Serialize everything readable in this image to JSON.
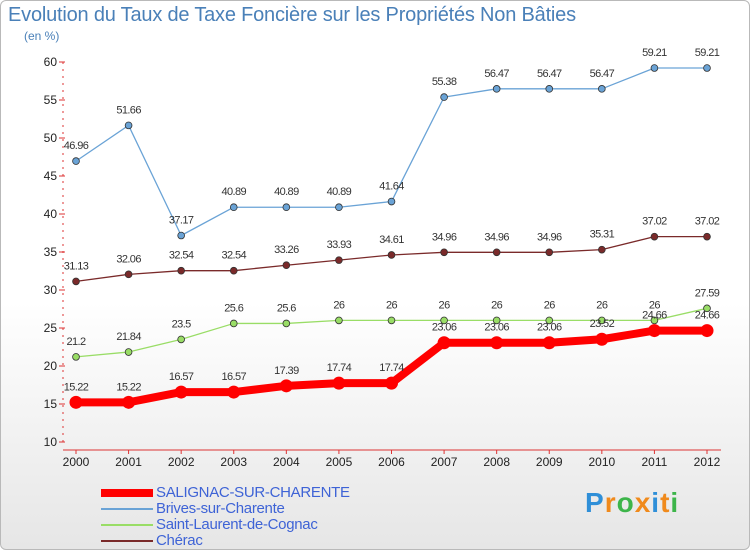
{
  "title": "Evolution du Taux de Taxe Foncière sur les Propriétés Non Bâties",
  "unit_label": "(en %)",
  "logo_text": "Proxiti",
  "colors": {
    "title": "#4a80b8",
    "salignac": "#ff0000",
    "brives": "#6aa3d6",
    "saint_laurent": "#99dd66",
    "cherac": "#7a2a2a",
    "legend_text": "#3e63d6"
  },
  "chart_data": {
    "type": "line",
    "title": "Evolution du Taux de Taxe Foncière sur les Propriétés Non Bâties",
    "ylabel": "(en %)",
    "xlabel": "",
    "x": [
      "2000",
      "2001",
      "2002",
      "2003",
      "2004",
      "2005",
      "2006",
      "2007",
      "2008",
      "2009",
      "2010",
      "2011",
      "2012"
    ],
    "yticks": [
      10,
      15,
      20,
      25,
      30,
      35,
      40,
      45,
      50,
      55,
      60
    ],
    "ylim": [
      10,
      60
    ],
    "grid": false,
    "legend_position": "bottom-left",
    "series": [
      {
        "name": "SALIGNAC-SUR-CHARENTE",
        "color": "#ff0000",
        "values": [
          15.22,
          15.22,
          16.57,
          16.57,
          17.39,
          17.74,
          17.74,
          23.06,
          23.06,
          23.06,
          23.52,
          24.66,
          24.66
        ],
        "labels": [
          "15.22",
          "15.22",
          "16.57",
          "16.57",
          "17.39",
          "17.74",
          "17.74",
          "23.06",
          "23.06",
          "23.06",
          "23.52",
          "24.66",
          "24.66"
        ]
      },
      {
        "name": "Brives-sur-Charente",
        "color": "#6aa3d6",
        "values": [
          46.96,
          51.66,
          37.17,
          40.89,
          40.89,
          40.89,
          41.64,
          55.38,
          56.47,
          56.47,
          56.47,
          59.21,
          59.21
        ],
        "labels": [
          "46.96",
          "51.66",
          "37.17",
          "40.89",
          "40.89",
          "40.89",
          "41.64",
          "55.38",
          "56.47",
          "56.47",
          "56.47",
          "59.21",
          "59.21"
        ]
      },
      {
        "name": "Saint-Laurent-de-Cognac",
        "color": "#99dd66",
        "values": [
          21.2,
          21.84,
          23.5,
          25.6,
          25.6,
          26,
          26,
          26,
          26,
          26,
          26,
          26,
          27.59
        ],
        "labels": [
          "21.2",
          "21.84",
          "23.5",
          "25.6",
          "25.6",
          "26",
          "26",
          "26",
          "26",
          "26",
          "26",
          "26",
          "27.59"
        ]
      },
      {
        "name": "Chérac",
        "color": "#7a2a2a",
        "values": [
          31.13,
          32.06,
          32.54,
          32.54,
          33.26,
          33.93,
          34.61,
          34.96,
          34.96,
          34.96,
          35.31,
          37.02,
          37.02
        ],
        "labels": [
          "31.13",
          "32.06",
          "32.54",
          "32.54",
          "33.26",
          "33.93",
          "34.61",
          "34.96",
          "34.96",
          "34.96",
          "35.31",
          "37.02",
          "37.02"
        ]
      }
    ]
  }
}
